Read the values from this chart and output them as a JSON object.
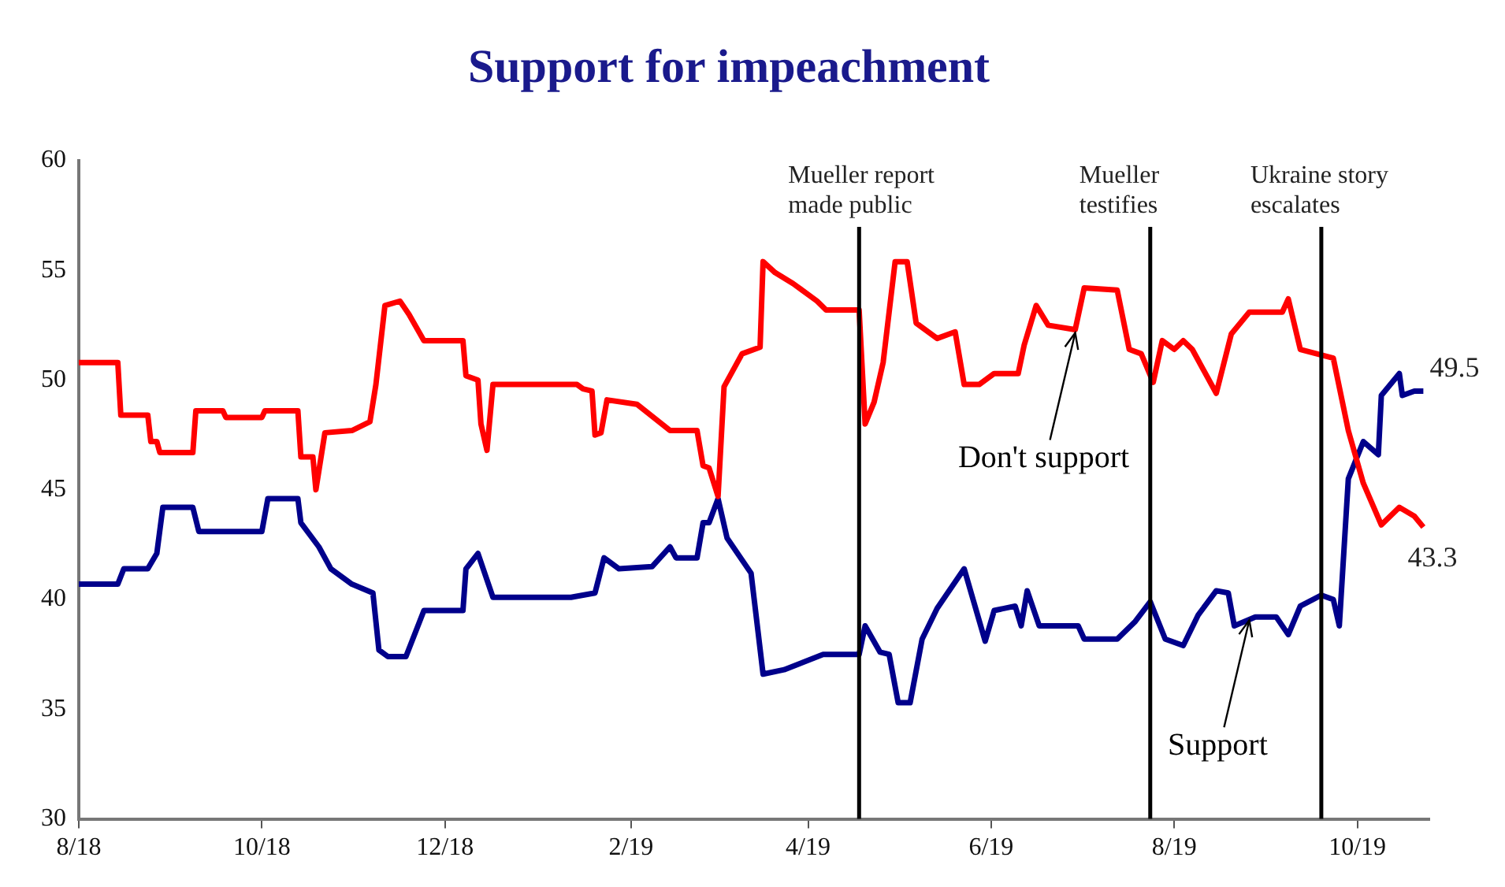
{
  "chart_data": {
    "type": "line",
    "title": "Support for impeachment",
    "xlim": [
      "2018-08-01",
      "2019-10-25"
    ],
    "xticks": [
      {
        "value": "2018-08-01",
        "label": "8/18"
      },
      {
        "value": "2018-10-01",
        "label": "10/18"
      },
      {
        "value": "2018-12-01",
        "label": "12/18"
      },
      {
        "value": "2019-02-01",
        "label": "2/19"
      },
      {
        "value": "2019-04-01",
        "label": "4/19"
      },
      {
        "value": "2019-06-01",
        "label": "6/19"
      },
      {
        "value": "2019-08-01",
        "label": "8/19"
      },
      {
        "value": "2019-10-01",
        "label": "10/19"
      }
    ],
    "ylim": [
      30,
      60
    ],
    "yticks": [
      30,
      35,
      40,
      45,
      50,
      55,
      60
    ],
    "series": [
      {
        "color": "#ff0000",
        "x": [
          "2018-08-01",
          "2018-08-14",
          "2018-08-15",
          "2018-08-24",
          "2018-08-25",
          "2018-08-27",
          "2018-08-28",
          "2018-09-08",
          "2018-09-09",
          "2018-09-18",
          "2018-09-19",
          "2018-10-01",
          "2018-10-02",
          "2018-10-13",
          "2018-10-14",
          "2018-10-18",
          "2018-10-19",
          "2018-10-22",
          "2018-10-31",
          "2018-11-06",
          "2018-11-08",
          "2018-11-11",
          "2018-11-16",
          "2018-11-19",
          "2018-11-24",
          "2018-12-07",
          "2018-12-08",
          "2018-12-12",
          "2018-12-13",
          "2018-12-15",
          "2018-12-17",
          "2019-01-14",
          "2019-01-16",
          "2019-01-19",
          "2019-01-20",
          "2019-01-22",
          "2019-01-24",
          "2019-02-03",
          "2019-02-14",
          "2019-02-23",
          "2019-02-25",
          "2019-02-27",
          "2019-03-02",
          "2019-03-04",
          "2019-03-10",
          "2019-03-16",
          "2019-03-17",
          "2019-03-21",
          "2019-03-27",
          "2019-04-04",
          "2019-04-07",
          "2019-04-18",
          "2019-04-20",
          "2019-04-23",
          "2019-04-26",
          "2019-04-30",
          "2019-05-04",
          "2019-05-07",
          "2019-05-14",
          "2019-05-20",
          "2019-05-23",
          "2019-05-28",
          "2019-06-02",
          "2019-06-10",
          "2019-06-12",
          "2019-06-16",
          "2019-06-20",
          "2019-06-29",
          "2019-07-02",
          "2019-07-13",
          "2019-07-17",
          "2019-07-21",
          "2019-07-25",
          "2019-07-28",
          "2019-08-01",
          "2019-08-04",
          "2019-08-07",
          "2019-08-15",
          "2019-08-20",
          "2019-08-26",
          "2019-09-06",
          "2019-09-08",
          "2019-09-12",
          "2019-09-23",
          "2019-09-28",
          "2019-10-03",
          "2019-10-09",
          "2019-10-15",
          "2019-10-20",
          "2019-10-23"
        ],
        "values": [
          50.8,
          50.8,
          48.4,
          48.4,
          47.2,
          47.2,
          46.7,
          46.7,
          48.6,
          48.6,
          48.3,
          48.3,
          48.6,
          48.6,
          46.5,
          46.5,
          45.0,
          47.6,
          47.7,
          48.1,
          49.8,
          53.4,
          53.6,
          53.0,
          51.8,
          51.8,
          50.2,
          50.0,
          48.0,
          46.8,
          49.8,
          49.8,
          49.6,
          49.5,
          47.5,
          47.6,
          49.1,
          48.9,
          47.7,
          47.7,
          46.1,
          46.0,
          44.7,
          49.7,
          51.2,
          51.5,
          55.4,
          54.9,
          54.4,
          53.6,
          53.2,
          53.2,
          48.0,
          49.0,
          50.8,
          55.4,
          55.4,
          52.6,
          51.9,
          52.2,
          49.8,
          49.8,
          50.3,
          50.3,
          51.6,
          53.4,
          52.5,
          52.3,
          54.2,
          54.1,
          51.4,
          51.2,
          49.9,
          51.8,
          51.4,
          51.8,
          51.4,
          49.4,
          52.1,
          53.1,
          53.1,
          53.7,
          51.4,
          51.0,
          47.7,
          45.3,
          43.4,
          44.2,
          43.8,
          43.3
        ],
        "value_labels": [
          null,
          null,
          null,
          null,
          null,
          null,
          null,
          null,
          null,
          null,
          null,
          null,
          null,
          null,
          null,
          null,
          null,
          null,
          null,
          null,
          null,
          null,
          null,
          null,
          null,
          null,
          null,
          null,
          null,
          null,
          null,
          null,
          null,
          null,
          null,
          null,
          null,
          null,
          null,
          null,
          null,
          null,
          null,
          null,
          null,
          null,
          null,
          null,
          null,
          null,
          null,
          null,
          null,
          null,
          null,
          null,
          null,
          null,
          null,
          null,
          null,
          null,
          null,
          null,
          null,
          null,
          null,
          null,
          null,
          null,
          null,
          null,
          null,
          null,
          null,
          null,
          null,
          null,
          null,
          null,
          null,
          null,
          null,
          null,
          null,
          null,
          null,
          null,
          null,
          "43.3"
        ]
      },
      {
        "color": "#00008b",
        "x": [
          "2018-08-01",
          "2018-08-14",
          "2018-08-16",
          "2018-08-24",
          "2018-08-27",
          "2018-08-29",
          "2018-09-08",
          "2018-09-10",
          "2018-10-01",
          "2018-10-03",
          "2018-10-13",
          "2018-10-14",
          "2018-10-20",
          "2018-10-24",
          "2018-10-31",
          "2018-11-07",
          "2018-11-09",
          "2018-11-12",
          "2018-11-18",
          "2018-11-24",
          "2018-12-07",
          "2018-12-08",
          "2018-12-12",
          "2018-12-17",
          "2019-01-12",
          "2019-01-20",
          "2019-01-23",
          "2019-01-28",
          "2019-02-08",
          "2019-02-14",
          "2019-02-16",
          "2019-02-23",
          "2019-02-25",
          "2019-02-27",
          "2019-03-02",
          "2019-03-05",
          "2019-03-13",
          "2019-03-17",
          "2019-03-24",
          "2019-04-06",
          "2019-04-18",
          "2019-04-20",
          "2019-04-25",
          "2019-04-28",
          "2019-05-01",
          "2019-05-05",
          "2019-05-09",
          "2019-05-14",
          "2019-05-23",
          "2019-05-30",
          "2019-06-02",
          "2019-06-09",
          "2019-06-11",
          "2019-06-13",
          "2019-06-17",
          "2019-06-30",
          "2019-07-02",
          "2019-07-13",
          "2019-07-19",
          "2019-07-24",
          "2019-07-29",
          "2019-08-04",
          "2019-08-09",
          "2019-08-15",
          "2019-08-19",
          "2019-08-21",
          "2019-08-28",
          "2019-09-04",
          "2019-09-08",
          "2019-09-12",
          "2019-09-19",
          "2019-09-23",
          "2019-09-25",
          "2019-09-28",
          "2019-10-03",
          "2019-10-08",
          "2019-10-09",
          "2019-10-15",
          "2019-10-16",
          "2019-10-20",
          "2019-10-23"
        ],
        "values": [
          40.7,
          40.7,
          41.4,
          41.4,
          42.1,
          44.2,
          44.2,
          43.1,
          43.1,
          44.6,
          44.6,
          43.5,
          42.4,
          41.4,
          40.7,
          40.3,
          37.7,
          37.4,
          37.4,
          39.5,
          39.5,
          41.4,
          42.1,
          40.1,
          40.1,
          40.3,
          41.9,
          41.4,
          41.5,
          42.4,
          41.9,
          41.9,
          43.5,
          43.5,
          44.6,
          42.8,
          41.2,
          36.6,
          36.8,
          37.5,
          37.5,
          38.8,
          37.6,
          37.5,
          35.3,
          35.3,
          38.2,
          39.6,
          41.4,
          38.1,
          39.5,
          39.7,
          38.8,
          40.4,
          38.8,
          38.8,
          38.2,
          38.2,
          39.0,
          39.9,
          38.2,
          37.9,
          39.3,
          40.4,
          40.3,
          38.8,
          39.2,
          39.2,
          38.4,
          39.7,
          40.2,
          40.0,
          38.8,
          45.5,
          47.2,
          46.6,
          49.3,
          50.3,
          49.3,
          49.5,
          49.5
        ],
        "value_labels": [
          null,
          null,
          null,
          null,
          null,
          null,
          null,
          null,
          null,
          null,
          null,
          null,
          null,
          null,
          null,
          null,
          null,
          null,
          null,
          null,
          null,
          null,
          null,
          null,
          null,
          null,
          null,
          null,
          null,
          null,
          null,
          null,
          null,
          null,
          null,
          null,
          null,
          null,
          null,
          null,
          null,
          null,
          null,
          null,
          null,
          null,
          null,
          null,
          null,
          null,
          null,
          null,
          null,
          null,
          null,
          null,
          null,
          null,
          null,
          null,
          null,
          null,
          null,
          null,
          null,
          null,
          null,
          null,
          null,
          null,
          null,
          null,
          null,
          null,
          null,
          null,
          null,
          null,
          null,
          null,
          "49.5"
        ]
      }
    ],
    "ref_lines": [
      {
        "axis": "x",
        "value": "2019-04-18",
        "label": "Mueller report\nmade public",
        "color": "#000000"
      },
      {
        "axis": "x",
        "value": "2019-07-24",
        "label": "Mueller\ntestifies",
        "color": "#000000"
      },
      {
        "axis": "x",
        "value": "2019-09-19",
        "label": "Ukraine story\nescalates",
        "color": "#000000"
      }
    ],
    "annotations": [
      {
        "text": "Don't support",
        "x": "2019-06-29",
        "y": 52.3
      },
      {
        "text": "Support",
        "x": "2019-08-26",
        "y": 39.2
      }
    ]
  }
}
